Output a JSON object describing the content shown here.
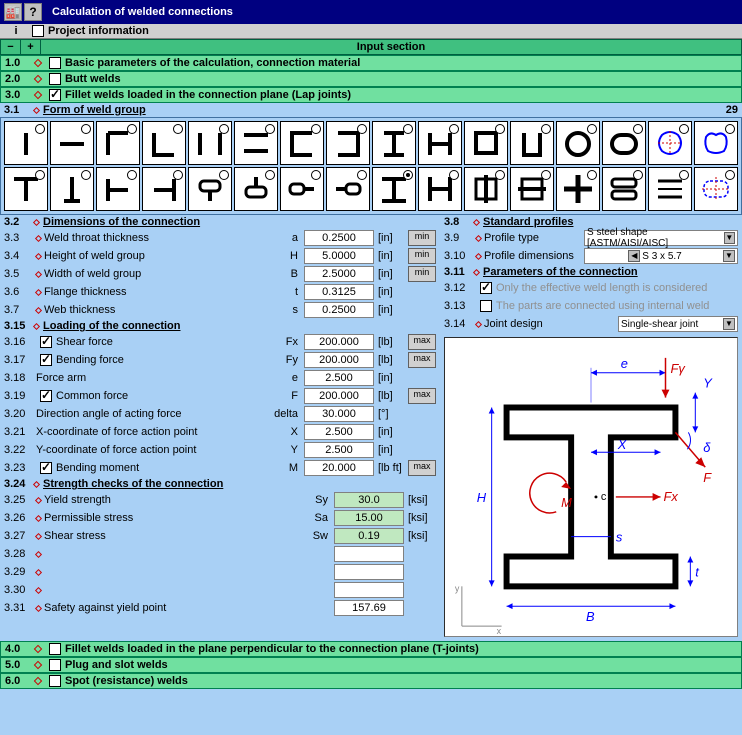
{
  "title": "Calculation of welded connections",
  "info": {
    "label": "Project information"
  },
  "input_section": "Input section",
  "sections": {
    "s1": {
      "idx": "1.0",
      "label": "Basic parameters of the calculation, connection material",
      "checked": false
    },
    "s2": {
      "idx": "2.0",
      "label": "Butt welds",
      "checked": false
    },
    "s3": {
      "idx": "3.0",
      "label": "Fillet welds loaded in the connection plane (Lap joints)",
      "checked": true
    },
    "s4": {
      "idx": "4.0",
      "label": "Fillet welds loaded in the plane perpendicular to the connection plane (T-joints)",
      "checked": false
    },
    "s5": {
      "idx": "5.0",
      "label": "Plug and slot welds",
      "checked": false
    },
    "s6": {
      "idx": "6.0",
      "label": "Spot (resistance) welds",
      "checked": false
    }
  },
  "sub31": {
    "idx": "3.1",
    "label": "Form of weld group",
    "count": "29"
  },
  "sub32": {
    "idx": "3.2",
    "label": "Dimensions of the connection"
  },
  "dims": [
    {
      "idx": "3.3",
      "desc": "Weld throat thickness",
      "sym": "a",
      "val": "0.2500",
      "unit": "[in]",
      "btn": "min"
    },
    {
      "idx": "3.4",
      "desc": "Height of weld group",
      "sym": "H",
      "val": "5.0000",
      "unit": "[in]",
      "btn": "min"
    },
    {
      "idx": "3.5",
      "desc": "Width of weld group",
      "sym": "B",
      "val": "2.5000",
      "unit": "[in]",
      "btn": "min"
    },
    {
      "idx": "3.6",
      "desc": "Flange thickness",
      "sym": "t",
      "val": "0.3125",
      "unit": "[in]",
      "btn": ""
    },
    {
      "idx": "3.7",
      "desc": "Web thickness",
      "sym": "s",
      "val": "0.2500",
      "unit": "[in]",
      "btn": ""
    }
  ],
  "sub315": {
    "idx": "3.15",
    "label": "Loading of the connection"
  },
  "loads": [
    {
      "idx": "3.16",
      "chk": true,
      "desc": "Shear force",
      "sym": "Fx",
      "val": "200.000",
      "unit": "[lb]",
      "btn": "max"
    },
    {
      "idx": "3.17",
      "chk": true,
      "desc": "Bending force",
      "sym": "Fy",
      "val": "200.000",
      "unit": "[lb]",
      "btn": "max"
    },
    {
      "idx": "3.18",
      "chk": null,
      "desc": "   Force arm",
      "sym": "e",
      "val": "2.500",
      "unit": "[in]",
      "btn": ""
    },
    {
      "idx": "3.19",
      "chk": true,
      "desc": "Common force",
      "sym": "F",
      "val": "200.000",
      "unit": "[lb]",
      "btn": "max"
    },
    {
      "idx": "3.20",
      "chk": null,
      "desc": "   Direction angle of acting force",
      "sym": "delta",
      "val": "30.000",
      "unit": "[°]",
      "btn": ""
    },
    {
      "idx": "3.21",
      "chk": null,
      "desc": "   X-coordinate of force action point",
      "sym": "X",
      "val": "2.500",
      "unit": "[in]",
      "btn": ""
    },
    {
      "idx": "3.22",
      "chk": null,
      "desc": "   Y-coordinate of force action point",
      "sym": "Y",
      "val": "2.500",
      "unit": "[in]",
      "btn": ""
    },
    {
      "idx": "3.23",
      "chk": true,
      "desc": "Bending moment",
      "sym": "M",
      "val": "20.000",
      "unit": "[lb ft]",
      "btn": "max"
    }
  ],
  "sub324": {
    "idx": "3.24",
    "label": "Strength checks of the connection"
  },
  "strength": [
    {
      "idx": "3.25",
      "desc": "Yield strength",
      "sym": "Sy",
      "val": "30.0",
      "unit": "[ksi]",
      "gr": true
    },
    {
      "idx": "3.26",
      "desc": "Permissible stress",
      "sym": "Sa",
      "val": "15.00",
      "unit": "[ksi]",
      "gr": true
    },
    {
      "idx": "3.27",
      "desc": "Shear stress",
      "sym": "Sw",
      "val": "0.19",
      "unit": "[ksi]",
      "gr": true
    },
    {
      "idx": "3.28",
      "desc": "",
      "sym": "",
      "val": "",
      "unit": "",
      "gr": false
    },
    {
      "idx": "3.29",
      "desc": "",
      "sym": "",
      "val": "",
      "unit": "",
      "gr": false
    },
    {
      "idx": "3.30",
      "desc": "",
      "sym": "",
      "val": "",
      "unit": "",
      "gr": false
    },
    {
      "idx": "3.31",
      "desc": "Safety against yield point",
      "sym": "",
      "val": "157.69",
      "unit": "",
      "gr": false
    }
  ],
  "sub38": {
    "idx": "3.8",
    "label": "Standard profiles"
  },
  "prof": [
    {
      "idx": "3.9",
      "desc": "Profile type",
      "val": "S steel shape  [ASTM/AISI/AISC]"
    },
    {
      "idx": "3.10",
      "desc": "Profile dimensions",
      "val": "S 3 x 5.7",
      "nav": true
    }
  ],
  "sub311": {
    "idx": "3.11",
    "label": "Parameters of the connection"
  },
  "params": [
    {
      "idx": "3.12",
      "chk": true,
      "desc": "Only the effective weld length is considered"
    },
    {
      "idx": "3.13",
      "chk": false,
      "desc": "The parts are connected using internal weld"
    }
  ],
  "joint": {
    "idx": "3.14",
    "desc": "Joint design",
    "val": "Single-shear joint"
  },
  "diagram_labels": {
    "e": "e",
    "Fy": "Fγ",
    "Y": "Y",
    "X": "X",
    "d": "δ",
    "F": "F",
    "M": "M",
    "c": "c",
    "Fx": "Fx",
    "H": "H",
    "s": "s",
    "t": "t",
    "B": "B"
  }
}
